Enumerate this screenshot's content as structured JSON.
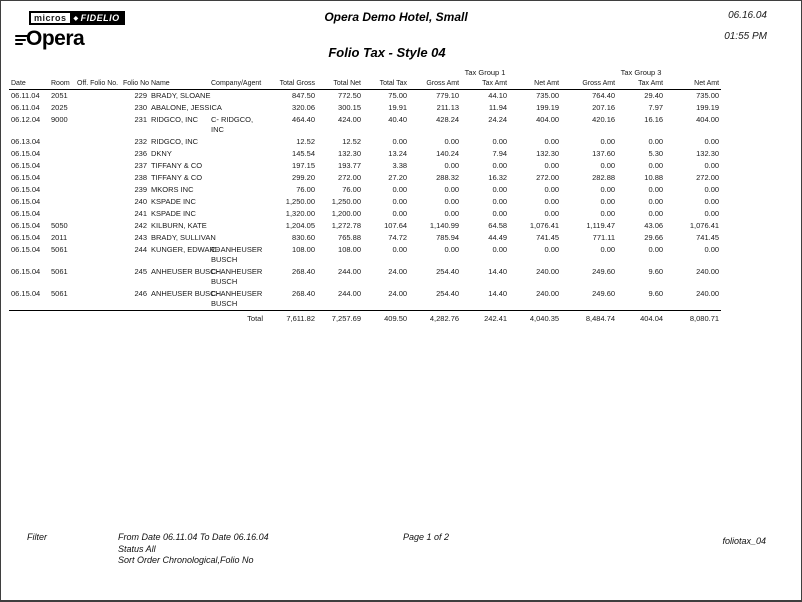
{
  "header": {
    "logo": {
      "micros": "micros",
      "fidelio": "FIDELIO",
      "diamond_icon": "◆",
      "opera": "Opera"
    },
    "hotel_name": "Opera Demo Hotel, Small",
    "date": "06.16.04",
    "time": "01:55 PM",
    "report_title": "Folio Tax - Style 04"
  },
  "table": {
    "tax_group_1_label": "Tax Group 1",
    "tax_group_3_label": "Tax Group 3",
    "columns": [
      "Date",
      "Room",
      "Off. Folio No.",
      "Folio No",
      "Name",
      "Company/Agent",
      "Total Gross",
      "Total Net",
      "Total Tax",
      "Gross Amt",
      "Tax Amt",
      "Net Amt",
      "Gross Amt",
      "Tax Amt",
      "Net Amt"
    ],
    "column_keys": [
      "date",
      "room",
      "off-folio-no",
      "folio-no",
      "name",
      "company-agent",
      "total-gross",
      "total-net",
      "total-tax",
      "tg1-gross-amt",
      "tg1-tax-amt",
      "tg1-net-amt",
      "tg3-gross-amt",
      "tg3-tax-amt",
      "tg3-net-amt"
    ],
    "rows": [
      [
        "06.11.04",
        "2051",
        "",
        "229",
        "BRADY, SLOANE",
        "",
        "847.50",
        "772.50",
        "75.00",
        "779.10",
        "44.10",
        "735.00",
        "764.40",
        "29.40",
        "735.00"
      ],
      [
        "06.11.04",
        "2025",
        "",
        "230",
        "ABALONE, JESSICA",
        "",
        "320.06",
        "300.15",
        "19.91",
        "211.13",
        "11.94",
        "199.19",
        "207.16",
        "7.97",
        "199.19"
      ],
      [
        "06.12.04",
        "9000",
        "",
        "231",
        "RIDGCO, INC",
        "C- RIDGCO, INC",
        "464.40",
        "424.00",
        "40.40",
        "428.24",
        "24.24",
        "404.00",
        "420.16",
        "16.16",
        "404.00"
      ],
      [
        "06.13.04",
        "",
        "",
        "232",
        "RIDGCO, INC",
        "",
        "12.52",
        "12.52",
        "0.00",
        "0.00",
        "0.00",
        "0.00",
        "0.00",
        "0.00",
        "0.00"
      ],
      [
        "06.15.04",
        "",
        "",
        "236",
        "DKNY",
        "",
        "145.54",
        "132.30",
        "13.24",
        "140.24",
        "7.94",
        "132.30",
        "137.60",
        "5.30",
        "132.30"
      ],
      [
        "06.15.04",
        "",
        "",
        "237",
        "TIFFANY & CO",
        "",
        "197.15",
        "193.77",
        "3.38",
        "0.00",
        "0.00",
        "0.00",
        "0.00",
        "0.00",
        "0.00"
      ],
      [
        "06.15.04",
        "",
        "",
        "238",
        "TIFFANY & CO",
        "",
        "299.20",
        "272.00",
        "27.20",
        "288.32",
        "16.32",
        "272.00",
        "282.88",
        "10.88",
        "272.00"
      ],
      [
        "06.15.04",
        "",
        "",
        "239",
        "MKORS INC",
        "",
        "76.00",
        "76.00",
        "0.00",
        "0.00",
        "0.00",
        "0.00",
        "0.00",
        "0.00",
        "0.00"
      ],
      [
        "06.15.04",
        "",
        "",
        "240",
        "KSPADE INC",
        "",
        "1,250.00",
        "1,250.00",
        "0.00",
        "0.00",
        "0.00",
        "0.00",
        "0.00",
        "0.00",
        "0.00"
      ],
      [
        "06.15.04",
        "",
        "",
        "241",
        "KSPADE INC",
        "",
        "1,320.00",
        "1,200.00",
        "0.00",
        "0.00",
        "0.00",
        "0.00",
        "0.00",
        "0.00",
        "0.00"
      ],
      [
        "06.15.04",
        "5050",
        "",
        "242",
        "KILBURN, KATE",
        "",
        "1,204.05",
        "1,272.78",
        "107.64",
        "1,140.99",
        "64.58",
        "1,076.41",
        "1,119.47",
        "43.06",
        "1,076.41"
      ],
      [
        "06.15.04",
        "2011",
        "",
        "243",
        "BRADY, SULLIVAN",
        "",
        "830.60",
        "765.88",
        "74.72",
        "785.94",
        "44.49",
        "741.45",
        "771.11",
        "29.66",
        "741.45"
      ],
      [
        "06.15.04",
        "5061",
        "",
        "244",
        "KUNGER, EDWARD",
        "C- ANHEUSER BUSCH",
        "108.00",
        "108.00",
        "0.00",
        "0.00",
        "0.00",
        "0.00",
        "0.00",
        "0.00",
        "0.00"
      ],
      [
        "06.15.04",
        "5061",
        "",
        "245",
        "ANHEUSER BUSCH",
        "C- ANHEUSER BUSCH",
        "268.40",
        "244.00",
        "24.00",
        "254.40",
        "14.40",
        "240.00",
        "249.60",
        "9.60",
        "240.00"
      ],
      [
        "06.15.04",
        "5061",
        "",
        "246",
        "ANHEUSER BUSCH",
        "C- ANHEUSER BUSCH",
        "268.40",
        "244.00",
        "24.00",
        "254.40",
        "14.40",
        "240.00",
        "249.60",
        "9.60",
        "240.00"
      ]
    ],
    "total_row": {
      "label": "Total",
      "values": [
        "7,611.82",
        "7,257.69",
        "409.50",
        "4,282.76",
        "242.41",
        "4,040.35",
        "8,484.74",
        "404.04",
        "8,080.71"
      ]
    }
  },
  "footer": {
    "filter_label": "Filter",
    "filter_lines": [
      "From Date 06.11.04  To Date 06.16.04",
      "Status All",
      "Sort Order Chronological,Folio No"
    ],
    "page_info": "Page 1 of 2",
    "report_id": "foliotax_04"
  }
}
